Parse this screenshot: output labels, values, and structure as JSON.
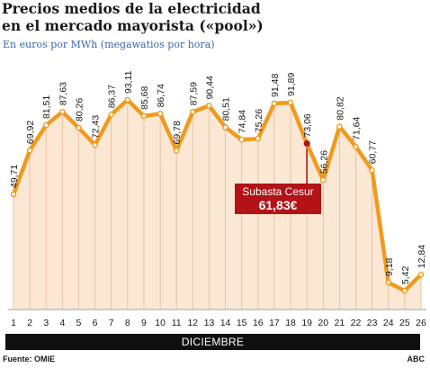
{
  "title_line1": "Precios medios de la electricidad",
  "title_line2": "en el mercado mayorista («pool»)",
  "subtitle": "En euros por MWh (megawatios por hora)",
  "month_label": "DICIEMBRE",
  "source": "Fuente: OMIE",
  "credit": "ABC",
  "callout": {
    "line1": "Subasta Cesur",
    "line2": "61,83€"
  },
  "colors": {
    "line": "#f09a1e",
    "fill": "#fbe8d4",
    "grid": "#e3b894",
    "callout": "#b31217",
    "subtitle": "#3a64b4"
  },
  "chart_data": {
    "type": "area",
    "x": [
      1,
      2,
      3,
      4,
      5,
      6,
      7,
      8,
      9,
      10,
      11,
      12,
      13,
      14,
      15,
      16,
      17,
      18,
      19,
      20,
      21,
      22,
      23,
      24,
      25,
      26
    ],
    "values": [
      49.71,
      69.92,
      81.51,
      87.63,
      80.26,
      72.43,
      86.37,
      93.11,
      85.68,
      86.74,
      69.78,
      87.59,
      90.44,
      80.51,
      74.84,
      75.26,
      91.48,
      91.89,
      73.06,
      56.26,
      80.82,
      71.64,
      60.77,
      9.18,
      5.42,
      12.84
    ],
    "value_labels": [
      "49,71",
      "69,92",
      "81,51",
      "87,63",
      "80,26",
      "72,43",
      "86,37",
      "93,11",
      "85,68",
      "86,74",
      "69,78",
      "87,59",
      "90,44",
      "80,51",
      "74,84",
      "75,26",
      "91,48",
      "91,89",
      "73,06",
      "56,26",
      "80,82",
      "71,64",
      "60,77",
      "9,18",
      "5,42",
      "12,84"
    ],
    "highlight_x": 19,
    "xlabel": "DICIEMBRE",
    "ylabel": "",
    "ylim": [
      0,
      100
    ],
    "grid": "vertical"
  }
}
